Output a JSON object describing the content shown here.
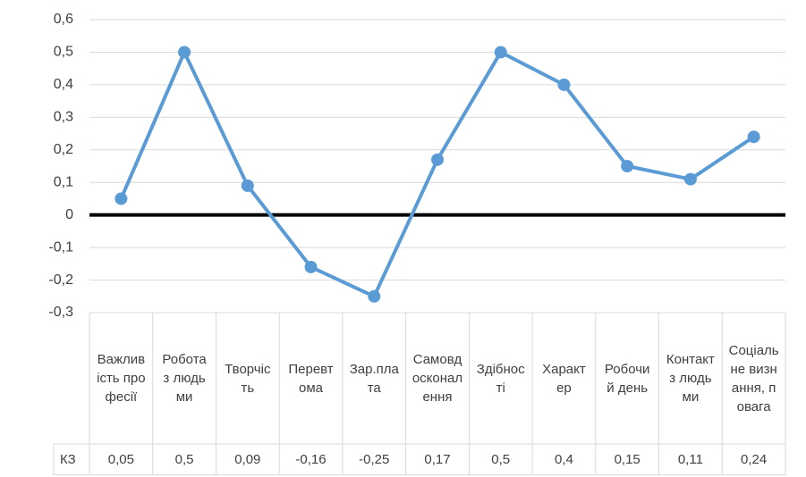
{
  "chart_data": {
    "type": "line",
    "categories": [
      "Важливість професії",
      "Робота з людьми",
      "Творчість",
      "Перевтома",
      "Зар.плата",
      "Самовдосконалення",
      "Здібності",
      "Характер",
      "Робочий день",
      "Контакт з людьми",
      "Соціальне визнання, повага"
    ],
    "series": [
      {
        "name": "КЗ",
        "color": "#5b9bd5",
        "values": [
          0.05,
          0.5,
          0.09,
          -0.16,
          -0.25,
          0.17,
          0.5,
          0.4,
          0.15,
          0.11,
          0.24
        ],
        "value_labels": [
          "0,05",
          "0,5",
          "0,09",
          "-0,16",
          "-0,25",
          "0,17",
          "0,5",
          "0,4",
          "0,15",
          "0,11",
          "0,24"
        ]
      }
    ],
    "ylim": [
      -0.3,
      0.6
    ],
    "yticks": [
      {
        "value": -0.3,
        "label": "-0,3"
      },
      {
        "value": -0.2,
        "label": "-0,2"
      },
      {
        "value": -0.1,
        "label": "-0,1"
      },
      0,
      {
        "value": 0.1,
        "label": "0,1"
      },
      {
        "value": 0.2,
        "label": "0,2"
      },
      {
        "value": 0.3,
        "label": "0,3"
      },
      {
        "value": 0.4,
        "label": "0,4"
      },
      {
        "value": 0.5,
        "label": "0,5"
      },
      {
        "value": 0.6,
        "label": "0,6"
      }
    ],
    "grid": true,
    "data_table": true
  }
}
